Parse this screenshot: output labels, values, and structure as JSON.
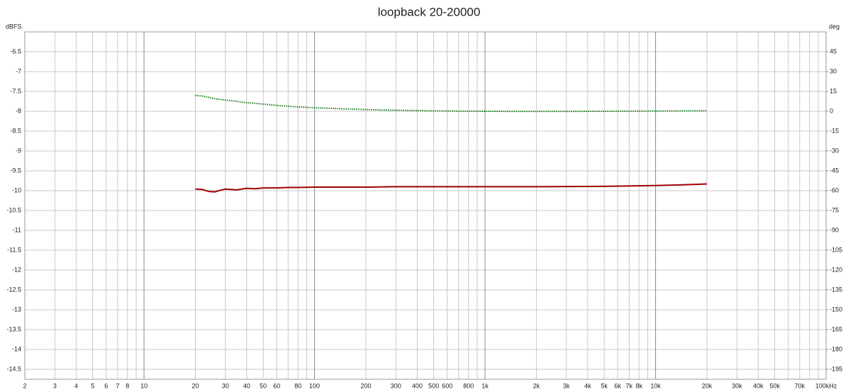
{
  "chart_data": {
    "type": "line",
    "title": "loopback 20-20000",
    "y_label": "dBFS",
    "y2_label": "deg",
    "xscale": "log",
    "grid": true,
    "xlim": [
      2,
      100000
    ],
    "ylim": [
      -14.75,
      -6.0
    ],
    "y2lim": [
      -202.5,
      60
    ],
    "xticks": [
      2,
      3,
      4,
      5,
      6,
      7,
      8,
      {
        "value": 9,
        "label": null
      },
      10,
      20,
      30,
      40,
      50,
      60,
      {
        "value": 70,
        "label": null
      },
      80,
      {
        "value": 90,
        "label": null
      },
      100,
      200,
      300,
      400,
      500,
      600,
      {
        "value": 700,
        "label": null
      },
      800,
      {
        "value": 900,
        "label": null
      },
      {
        "value": 1000,
        "label": "1k"
      },
      {
        "value": 2000,
        "label": "2k"
      },
      {
        "value": 3000,
        "label": "3k"
      },
      {
        "value": 4000,
        "label": "4k"
      },
      {
        "value": 5000,
        "label": "5k"
      },
      {
        "value": 6000,
        "label": "6k"
      },
      {
        "value": 7000,
        "label": "7k"
      },
      {
        "value": 8000,
        "label": "8k"
      },
      {
        "value": 9000,
        "label": null
      },
      {
        "value": 10000,
        "label": "10k"
      },
      {
        "value": 20000,
        "label": "20k"
      },
      {
        "value": 30000,
        "label": "30k"
      },
      {
        "value": 40000,
        "label": "40k"
      },
      {
        "value": 50000,
        "label": "50k"
      },
      {
        "value": 60000,
        "label": null
      },
      {
        "value": 70000,
        "label": "70k"
      },
      {
        "value": 80000,
        "label": null
      },
      {
        "value": 90000,
        "label": null
      },
      {
        "value": 100000,
        "label": "100kHz"
      }
    ],
    "yticks": [
      -6.5,
      -7,
      -7.5,
      -8,
      -8.5,
      -9,
      -9.5,
      -10,
      -10.5,
      -11,
      -11.5,
      -12,
      -12.5,
      -13,
      -13.5,
      -14,
      -14.5
    ],
    "y2ticks": [
      45,
      30,
      15,
      0,
      -15,
      -30,
      -45,
      -60,
      -75,
      -90,
      -105,
      -120,
      -135,
      -150,
      -165,
      -180,
      -195
    ],
    "x": [
      20,
      22,
      24,
      26,
      28,
      30,
      35,
      40,
      45,
      50,
      60,
      70,
      80,
      100,
      150,
      200,
      300,
      500,
      700,
      1000,
      2000,
      5000,
      10000,
      15000,
      20000
    ],
    "series": [
      {
        "color": "#a00000",
        "line_style": "solid",
        "values": [
          -9.96,
          -9.97,
          -10.02,
          -10.03,
          -9.99,
          -9.96,
          -9.98,
          -9.94,
          -9.95,
          -9.93,
          -9.93,
          -9.92,
          -9.92,
          -9.91,
          -9.91,
          -9.91,
          -9.9,
          -9.9,
          -9.9,
          -9.9,
          -9.9,
          -9.89,
          -9.87,
          -9.85,
          -9.83
        ]
      },
      {
        "color": "#1a7a1a",
        "line_style": "dotted",
        "axis": "y2",
        "values": [
          12,
          11.5,
          10.5,
          9.5,
          9,
          8.5,
          7.5,
          6.5,
          6,
          5.4,
          4.5,
          3.8,
          3.3,
          2.7,
          1.8,
          1.3,
          0.8,
          0.3,
          0.1,
          0,
          -0.1,
          0,
          0.2,
          0.3,
          0.4
        ]
      }
    ]
  }
}
